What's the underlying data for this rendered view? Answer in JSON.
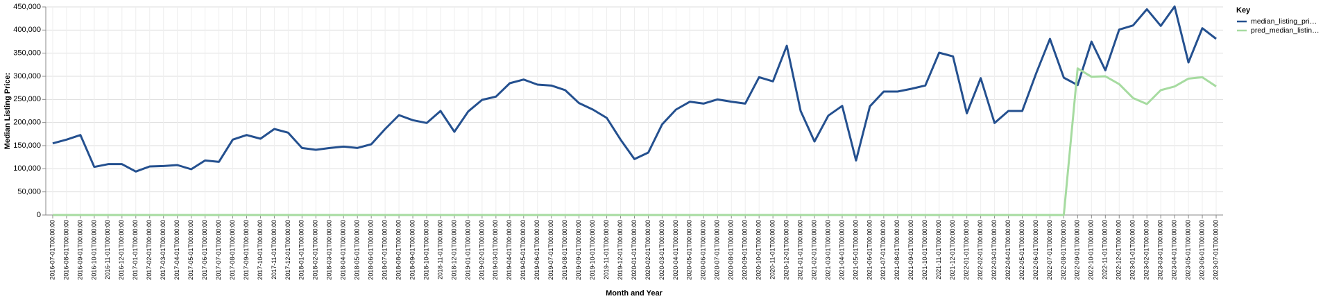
{
  "chart_data": {
    "type": "line",
    "x_label": "Month and Year",
    "y_label": "Median Listing Price:",
    "legend_title": "Key",
    "legend_position": "right",
    "grid": true,
    "categories": [
      "2016-07-01T00:00:00",
      "2016-08-01T00:00:00",
      "2016-09-01T00:00:00",
      "2016-10-01T00:00:00",
      "2016-11-01T00:00:00",
      "2016-12-01T00:00:00",
      "2017-01-01T00:00:00",
      "2017-02-01T00:00:00",
      "2017-03-01T00:00:00",
      "2017-04-01T00:00:00",
      "2017-05-01T00:00:00",
      "2017-06-01T00:00:00",
      "2017-07-01T00:00:00",
      "2017-08-01T00:00:00",
      "2017-09-01T00:00:00",
      "2017-10-01T00:00:00",
      "2017-11-01T00:00:00",
      "2017-12-01T00:00:00",
      "2018-01-01T00:00:00",
      "2018-02-01T00:00:00",
      "2018-03-01T00:00:00",
      "2018-04-01T00:00:00",
      "2018-05-01T00:00:00",
      "2018-06-01T00:00:00",
      "2018-07-01T00:00:00",
      "2018-08-01T00:00:00",
      "2018-09-01T00:00:00",
      "2018-10-01T00:00:00",
      "2018-11-01T00:00:00",
      "2018-12-01T00:00:00",
      "2019-01-01T00:00:00",
      "2019-02-01T00:00:00",
      "2019-03-01T00:00:00",
      "2019-04-01T00:00:00",
      "2019-05-01T00:00:00",
      "2019-06-01T00:00:00",
      "2019-07-01T00:00:00",
      "2019-08-01T00:00:00",
      "2019-09-01T00:00:00",
      "2019-10-01T00:00:00",
      "2019-11-01T00:00:00",
      "2019-12-01T00:00:00",
      "2020-01-01T00:00:00",
      "2020-02-01T00:00:00",
      "2020-03-01T00:00:00",
      "2020-04-01T00:00:00",
      "2020-05-01T00:00:00",
      "2020-06-01T00:00:00",
      "2020-07-01T00:00:00",
      "2020-08-01T00:00:00",
      "2020-09-01T00:00:00",
      "2020-10-01T00:00:00",
      "2020-11-01T00:00:00",
      "2020-12-01T00:00:00",
      "2021-01-01T00:00:00",
      "2021-02-01T00:00:00",
      "2021-03-01T00:00:00",
      "2021-04-01T00:00:00",
      "2021-05-01T00:00:00",
      "2021-06-01T00:00:00",
      "2021-07-01T00:00:00",
      "2021-08-01T00:00:00",
      "2021-09-01T00:00:00",
      "2021-10-01T00:00:00",
      "2021-11-01T00:00:00",
      "2021-12-01T00:00:00",
      "2022-01-01T00:00:00",
      "2022-02-01T00:00:00",
      "2022-03-01T00:00:00",
      "2022-04-01T00:00:00",
      "2022-05-01T00:00:00",
      "2022-06-01T00:00:00",
      "2022-07-01T00:00:00",
      "2022-08-01T00:00:00",
      "2022-09-01T00:00:00",
      "2022-10-01T00:00:00",
      "2022-11-01T00:00:00",
      "2022-12-01T00:00:00",
      "2023-01-01T00:00:00",
      "2023-02-01T00:00:00",
      "2023-03-01T00:00:00",
      "2023-04-01T00:00:00",
      "2023-05-01T00:00:00",
      "2023-06-01T00:00:00",
      "2023-07-01T00:00:00"
    ],
    "series": [
      {
        "name": "median_listing_pri…",
        "color": "#24508f",
        "values": [
          155000,
          163000,
          173000,
          104000,
          110000,
          110000,
          94000,
          105000,
          106000,
          108000,
          99000,
          118000,
          115000,
          163000,
          173000,
          165000,
          186000,
          178000,
          145000,
          141000,
          145000,
          148000,
          145000,
          153000,
          186000,
          216000,
          205000,
          199000,
          225000,
          180000,
          224000,
          249000,
          256000,
          285000,
          293000,
          282000,
          280000,
          270000,
          242000,
          228000,
          210000,
          163000,
          121000,
          135000,
          196000,
          228000,
          245000,
          241000,
          250000,
          245000,
          241000,
          298000,
          289000,
          366000,
          225000,
          159000,
          215000,
          236000,
          118000,
          235000,
          267000,
          267000,
          273000,
          280000,
          351000,
          343000,
          220000,
          296000,
          199000,
          225000,
          225000,
          306000,
          381000,
          297000,
          281000,
          375000,
          313000,
          401000,
          410000,
          445000,
          409000,
          451000,
          330000,
          404000,
          381000
        ]
      },
      {
        "name": "pred_median_listin…",
        "color": "#a6dba0",
        "values": [
          0,
          0,
          0,
          0,
          0,
          0,
          0,
          0,
          0,
          0,
          0,
          0,
          0,
          0,
          0,
          0,
          0,
          0,
          0,
          0,
          0,
          0,
          0,
          0,
          0,
          0,
          0,
          0,
          0,
          0,
          0,
          0,
          0,
          0,
          0,
          0,
          0,
          0,
          0,
          0,
          0,
          0,
          0,
          0,
          0,
          0,
          0,
          0,
          0,
          0,
          0,
          0,
          0,
          0,
          0,
          0,
          0,
          0,
          0,
          0,
          0,
          0,
          0,
          0,
          0,
          0,
          0,
          0,
          0,
          0,
          0,
          0,
          0,
          0,
          317000,
          299000,
          300000,
          283000,
          253000,
          240000,
          270000,
          278000,
          295000,
          298000,
          278000
        ]
      }
    ],
    "ylim": [
      0,
      450000
    ],
    "yticks": [
      0,
      {
        "value": 50000,
        "label": "50,000"
      },
      {
        "value": 100000,
        "label": "100,000"
      },
      {
        "value": 150000,
        "label": "150,000"
      },
      {
        "value": 200000,
        "label": "200,000"
      },
      {
        "value": 250000,
        "label": "250,000"
      },
      {
        "value": 300000,
        "label": "300,000"
      },
      {
        "value": 350000,
        "label": "350,000"
      },
      {
        "value": 400000,
        "label": "400,000"
      },
      {
        "value": 450000,
        "label": "450,000"
      }
    ]
  }
}
